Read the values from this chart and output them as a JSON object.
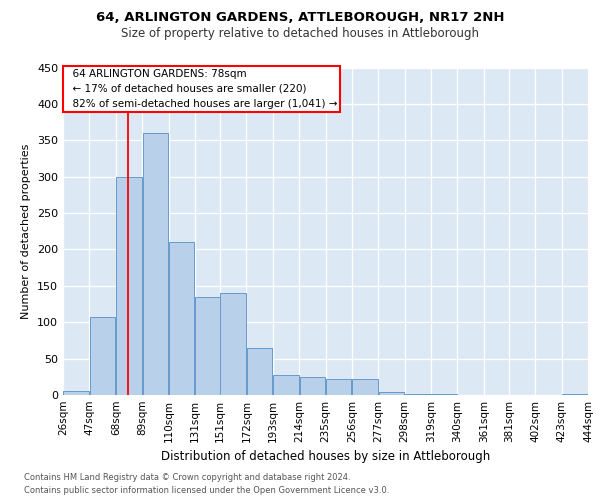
{
  "title1": "64, ARLINGTON GARDENS, ATTLEBOROUGH, NR17 2NH",
  "title2": "Size of property relative to detached houses in Attleborough",
  "xlabel": "Distribution of detached houses by size in Attleborough",
  "ylabel": "Number of detached properties",
  "footer1": "Contains HM Land Registry data © Crown copyright and database right 2024.",
  "footer2": "Contains public sector information licensed under the Open Government Licence v3.0.",
  "annotation_line1": "64 ARLINGTON GARDENS: 78sqm",
  "annotation_line2": "← 17% of detached houses are smaller (220)",
  "annotation_line3": "82% of semi-detached houses are larger (1,041) →",
  "bar_color": "#b8d0ea",
  "bar_edge_color": "#6699cc",
  "ref_line_x": 78,
  "bins": [
    26,
    47,
    68,
    89,
    110,
    131,
    151,
    172,
    193,
    214,
    235,
    256,
    277,
    298,
    319,
    340,
    361,
    381,
    402,
    423,
    444
  ],
  "counts": [
    5,
    107,
    300,
    360,
    210,
    135,
    140,
    65,
    27,
    25,
    22,
    22,
    4,
    2,
    1,
    0,
    0,
    0,
    0,
    1
  ],
  "ylim": [
    0,
    450
  ],
  "yticks": [
    0,
    50,
    100,
    150,
    200,
    250,
    300,
    350,
    400,
    450
  ],
  "bg_color": "#dce9f5",
  "grid_color": "#ffffff",
  "title1_fontsize": 9.5,
  "title2_fontsize": 8.5,
  "xlabel_fontsize": 8.5,
  "ylabel_fontsize": 8.0,
  "tick_fontsize": 7.5,
  "footer_fontsize": 6.0
}
